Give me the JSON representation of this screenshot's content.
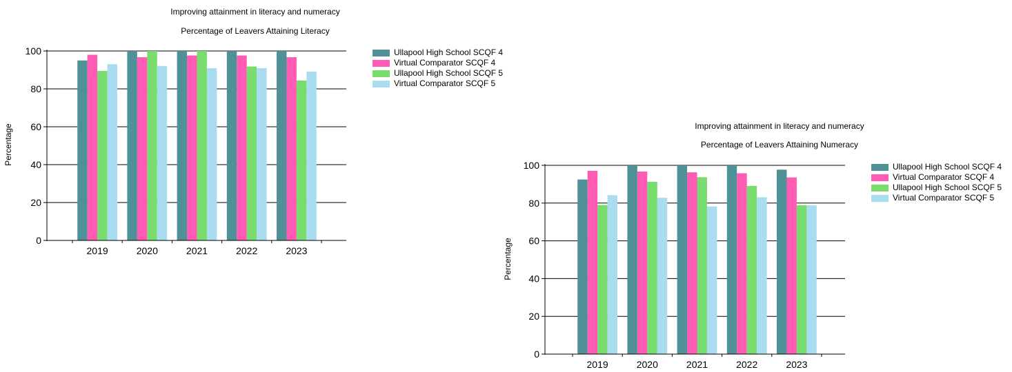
{
  "charts": [
    {
      "title": "Improving attainment in literacy and numeracy",
      "subtitle": "Percentage of Leavers Attaining Literacy",
      "ylabel": "Percentage"
    },
    {
      "title": "Improving attainment in literacy and numeracy",
      "subtitle": "Percentage of Leavers Attaining Numeracy",
      "ylabel": "Percentage"
    }
  ],
  "chart_data": [
    {
      "type": "bar",
      "title": "Improving attainment in literacy and numeracy",
      "subtitle": "Percentage of Leavers Attaining Literacy",
      "xlabel": "",
      "ylabel": "Percentage",
      "ylim": [
        0,
        100
      ],
      "yticks": [
        0,
        20,
        40,
        60,
        80,
        100
      ],
      "grid": true,
      "legend_position": "right",
      "categories": [
        "2019",
        "2020",
        "2021",
        "2022",
        "2023"
      ],
      "series": [
        {
          "name": "Ullapool High School SCQF 4",
          "color": "#4f9196",
          "values": [
            95,
            100,
            100,
            100,
            100
          ]
        },
        {
          "name": "Virtual Comparator SCQF 4",
          "color": "#ff5ab4",
          "values": [
            98,
            96.7,
            97.6,
            97.6,
            96.7
          ]
        },
        {
          "name": "Ullapool High School SCQF 5",
          "color": "#78dc6e",
          "values": [
            89.5,
            100,
            100,
            91.8,
            84.4
          ]
        },
        {
          "name": "Virtual Comparator SCQF 5",
          "color": "#aadcf0",
          "values": [
            93,
            92.1,
            90.9,
            90.9,
            89.1
          ]
        }
      ]
    },
    {
      "type": "bar",
      "title": "Improving attainment in literacy and numeracy",
      "subtitle": "Percentage of Leavers Attaining Numeracy",
      "xlabel": "",
      "ylabel": "Percentage",
      "ylim": [
        0,
        100
      ],
      "yticks": [
        0,
        20,
        40,
        60,
        80,
        100
      ],
      "grid": true,
      "legend_position": "right",
      "categories": [
        "2019",
        "2020",
        "2021",
        "2022",
        "2023"
      ],
      "series": [
        {
          "name": "Ullapool High School SCQF 4",
          "color": "#4f9196",
          "values": [
            92.5,
            100,
            100,
            100,
            97.7
          ]
        },
        {
          "name": "Virtual Comparator SCQF 4",
          "color": "#ff5ab4",
          "values": [
            97.1,
            96.7,
            96.3,
            95.8,
            93.6
          ]
        },
        {
          "name": "Ullapool High School SCQF 5",
          "color": "#78dc6e",
          "values": [
            79,
            91.3,
            93.7,
            89.1,
            78.9
          ]
        },
        {
          "name": "Virtual Comparator SCQF 5",
          "color": "#aadcf0",
          "values": [
            84.2,
            82.8,
            78.2,
            83.1,
            78.8
          ]
        }
      ]
    }
  ]
}
